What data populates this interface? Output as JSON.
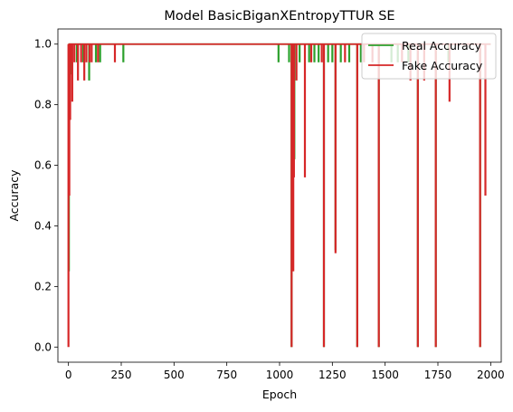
{
  "chart_data": {
    "type": "line",
    "title": "Model BasicBiganXEntropyTTUR SE",
    "xlabel": "Epoch",
    "ylabel": "Accuracy",
    "xlim": [
      -50,
      2050
    ],
    "ylim": [
      -0.05,
      1.05
    ],
    "xticks": [
      0,
      250,
      500,
      750,
      1000,
      1250,
      1500,
      1750,
      2000
    ],
    "yticks": [
      0.0,
      0.2,
      0.4,
      0.6,
      0.8,
      1.0
    ],
    "xtick_labels": [
      "0",
      "250",
      "500",
      "750",
      "1000",
      "1250",
      "1500",
      "1750",
      "2000"
    ],
    "ytick_labels": [
      "0.0",
      "0.2",
      "0.4",
      "0.6",
      "0.8",
      "1.0"
    ],
    "grid": false,
    "legend_position": "top-right",
    "series": [
      {
        "name": "Real Accuracy",
        "color": "#2ca02c",
        "baseline": 1.0,
        "dips": [
          [
            2,
            0.25
          ],
          [
            10,
            0.9
          ],
          [
            16,
            0.94
          ],
          [
            40,
            0.94
          ],
          [
            70,
            0.94
          ],
          [
            98,
            0.88
          ],
          [
            130,
            0.94
          ],
          [
            150,
            0.94
          ],
          [
            260,
            0.94
          ],
          [
            995,
            0.94
          ],
          [
            1045,
            0.94
          ],
          [
            1057,
            0.0
          ],
          [
            1063,
            0.5
          ],
          [
            1070,
            0.62
          ],
          [
            1095,
            0.94
          ],
          [
            1140,
            0.94
          ],
          [
            1165,
            0.94
          ],
          [
            1185,
            0.94
          ],
          [
            1210,
            0.0
          ],
          [
            1230,
            0.94
          ],
          [
            1250,
            0.94
          ],
          [
            1265,
            0.32
          ],
          [
            1290,
            0.94
          ],
          [
            1330,
            0.94
          ],
          [
            1368,
            0.0
          ],
          [
            1385,
            0.94
          ],
          [
            1470,
            0.0
          ],
          [
            1530,
            0.94
          ],
          [
            1560,
            0.94
          ],
          [
            1610,
            0.94
          ],
          [
            1655,
            0.0
          ],
          [
            1740,
            0.0
          ],
          [
            1800,
            0.94
          ],
          [
            1950,
            0.0
          ]
        ]
      },
      {
        "name": "Fake Accuracy",
        "color": "#d62728",
        "baseline": 1.0,
        "dips": [
          [
            0,
            0.0
          ],
          [
            4,
            0.5
          ],
          [
            6,
            0.88
          ],
          [
            8,
            0.75
          ],
          [
            12,
            0.94
          ],
          [
            18,
            0.81
          ],
          [
            28,
            0.94
          ],
          [
            45,
            0.88
          ],
          [
            60,
            0.94
          ],
          [
            75,
            0.88
          ],
          [
            85,
            0.94
          ],
          [
            100,
            0.94
          ],
          [
            110,
            0.94
          ],
          [
            140,
            0.94
          ],
          [
            220,
            0.94
          ],
          [
            1057,
            0.0
          ],
          [
            1060,
            0.5
          ],
          [
            1065,
            0.25
          ],
          [
            1068,
            0.56
          ],
          [
            1080,
            0.88
          ],
          [
            1120,
            0.56
          ],
          [
            1150,
            0.94
          ],
          [
            1200,
            0.94
          ],
          [
            1210,
            0.0
          ],
          [
            1265,
            0.31
          ],
          [
            1310,
            0.94
          ],
          [
            1368,
            0.0
          ],
          [
            1400,
            0.94
          ],
          [
            1440,
            0.94
          ],
          [
            1470,
            0.0
          ],
          [
            1580,
            0.94
          ],
          [
            1620,
            0.88
          ],
          [
            1655,
            0.0
          ],
          [
            1685,
            0.88
          ],
          [
            1740,
            0.0
          ],
          [
            1805,
            0.81
          ],
          [
            1950,
            0.0
          ],
          [
            1975,
            0.5
          ]
        ]
      }
    ]
  }
}
